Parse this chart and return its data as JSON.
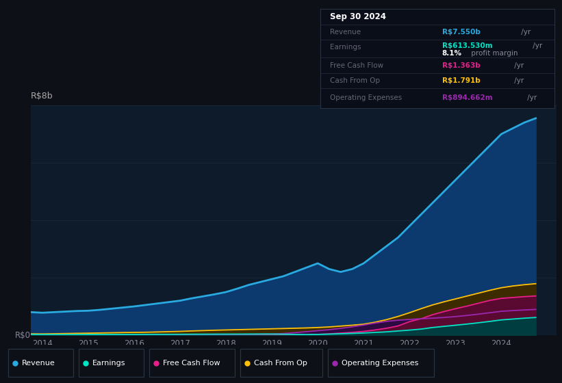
{
  "bg_color": "#0d1117",
  "plot_bg_color": "#0d1b2a",
  "grid_color": "#1a2a3a",
  "years": [
    2013.75,
    2014.0,
    2014.25,
    2014.5,
    2014.75,
    2015.0,
    2015.25,
    2015.5,
    2015.75,
    2016.0,
    2016.25,
    2016.5,
    2016.75,
    2017.0,
    2017.25,
    2017.5,
    2017.75,
    2018.0,
    2018.25,
    2018.5,
    2018.75,
    2019.0,
    2019.25,
    2019.5,
    2019.75,
    2020.0,
    2020.25,
    2020.5,
    2020.75,
    2021.0,
    2021.25,
    2021.5,
    2021.75,
    2022.0,
    2022.25,
    2022.5,
    2022.75,
    2023.0,
    2023.25,
    2023.5,
    2023.75,
    2024.0,
    2024.25,
    2024.5,
    2024.75
  ],
  "revenue": [
    0.8,
    0.78,
    0.8,
    0.82,
    0.84,
    0.85,
    0.88,
    0.92,
    0.96,
    1.0,
    1.05,
    1.1,
    1.15,
    1.2,
    1.28,
    1.35,
    1.42,
    1.5,
    1.62,
    1.75,
    1.85,
    1.95,
    2.05,
    2.2,
    2.35,
    2.5,
    2.3,
    2.2,
    2.3,
    2.5,
    2.8,
    3.1,
    3.4,
    3.8,
    4.2,
    4.6,
    5.0,
    5.4,
    5.8,
    6.2,
    6.6,
    7.0,
    7.2,
    7.4,
    7.55
  ],
  "earnings": [
    0.02,
    0.018,
    0.019,
    0.019,
    0.02,
    0.022,
    0.023,
    0.024,
    0.025,
    0.026,
    0.027,
    0.028,
    0.029,
    0.03,
    0.032,
    0.033,
    0.034,
    0.035,
    0.036,
    0.037,
    0.038,
    0.038,
    0.032,
    0.025,
    0.02,
    0.025,
    0.035,
    0.048,
    0.06,
    0.075,
    0.095,
    0.115,
    0.145,
    0.175,
    0.21,
    0.265,
    0.305,
    0.345,
    0.385,
    0.43,
    0.478,
    0.53,
    0.56,
    0.59,
    0.614
  ],
  "free_cash_flow": [
    0.005,
    0.005,
    0.005,
    0.005,
    0.005,
    0.006,
    0.006,
    0.006,
    0.006,
    0.007,
    0.007,
    0.007,
    0.007,
    0.007,
    0.007,
    0.008,
    0.008,
    0.008,
    0.01,
    0.015,
    0.018,
    0.02,
    0.02,
    0.018,
    0.015,
    0.025,
    0.045,
    0.07,
    0.095,
    0.13,
    0.18,
    0.24,
    0.32,
    0.47,
    0.57,
    0.71,
    0.82,
    0.92,
    1.01,
    1.11,
    1.21,
    1.28,
    1.31,
    1.34,
    1.363
  ],
  "cash_from_op": [
    0.045,
    0.042,
    0.048,
    0.055,
    0.062,
    0.068,
    0.075,
    0.082,
    0.09,
    0.095,
    0.1,
    0.11,
    0.12,
    0.13,
    0.145,
    0.158,
    0.17,
    0.18,
    0.19,
    0.2,
    0.21,
    0.22,
    0.23,
    0.24,
    0.25,
    0.265,
    0.285,
    0.315,
    0.345,
    0.38,
    0.45,
    0.54,
    0.65,
    0.78,
    0.92,
    1.05,
    1.16,
    1.26,
    1.36,
    1.46,
    1.56,
    1.65,
    1.71,
    1.755,
    1.791
  ],
  "operating_expenses": [
    0.01,
    0.01,
    0.01,
    0.01,
    0.01,
    0.012,
    0.012,
    0.012,
    0.013,
    0.015,
    0.016,
    0.017,
    0.018,
    0.019,
    0.02,
    0.021,
    0.022,
    0.023,
    0.025,
    0.028,
    0.035,
    0.04,
    0.055,
    0.085,
    0.12,
    0.155,
    0.19,
    0.235,
    0.29,
    0.35,
    0.42,
    0.48,
    0.52,
    0.545,
    0.57,
    0.59,
    0.615,
    0.645,
    0.685,
    0.73,
    0.78,
    0.83,
    0.855,
    0.875,
    0.895
  ],
  "revenue_color": "#29ABE2",
  "earnings_color": "#00E5C8",
  "fcf_color": "#E91E8C",
  "cashop_color": "#FFC107",
  "opex_color": "#9C27B0",
  "revenue_fill": "#0d3a6e",
  "earnings_fill": "#003d40",
  "fcf_fill": "#5a0a30",
  "cashop_fill": "#3d2b00",
  "opex_fill": "#2d0a40",
  "info_box": {
    "date": "Sep 30 2024",
    "revenue_label": "Revenue",
    "revenue_val": "R$7.550b",
    "earnings_label": "Earnings",
    "earnings_val": "R$613.530m",
    "profit_margin": "8.1%",
    "profit_margin_text": " profit margin",
    "fcf_label": "Free Cash Flow",
    "fcf_val": "R$1.363b",
    "cashop_label": "Cash From Op",
    "cashop_val": "R$1.791b",
    "opex_label": "Operating Expenses",
    "opex_val": "R$894.662m"
  },
  "xlim": [
    2013.75,
    2025.2
  ],
  "ylim": [
    0.0,
    8.0
  ],
  "xticks": [
    2014,
    2015,
    2016,
    2017,
    2018,
    2019,
    2020,
    2021,
    2022,
    2023,
    2024
  ],
  "legend_items": [
    {
      "label": "Revenue",
      "color": "#29ABE2"
    },
    {
      "label": "Earnings",
      "color": "#00E5C8"
    },
    {
      "label": "Free Cash Flow",
      "color": "#E91E8C"
    },
    {
      "label": "Cash From Op",
      "color": "#FFC107"
    },
    {
      "label": "Operating Expenses",
      "color": "#9C27B0"
    }
  ]
}
